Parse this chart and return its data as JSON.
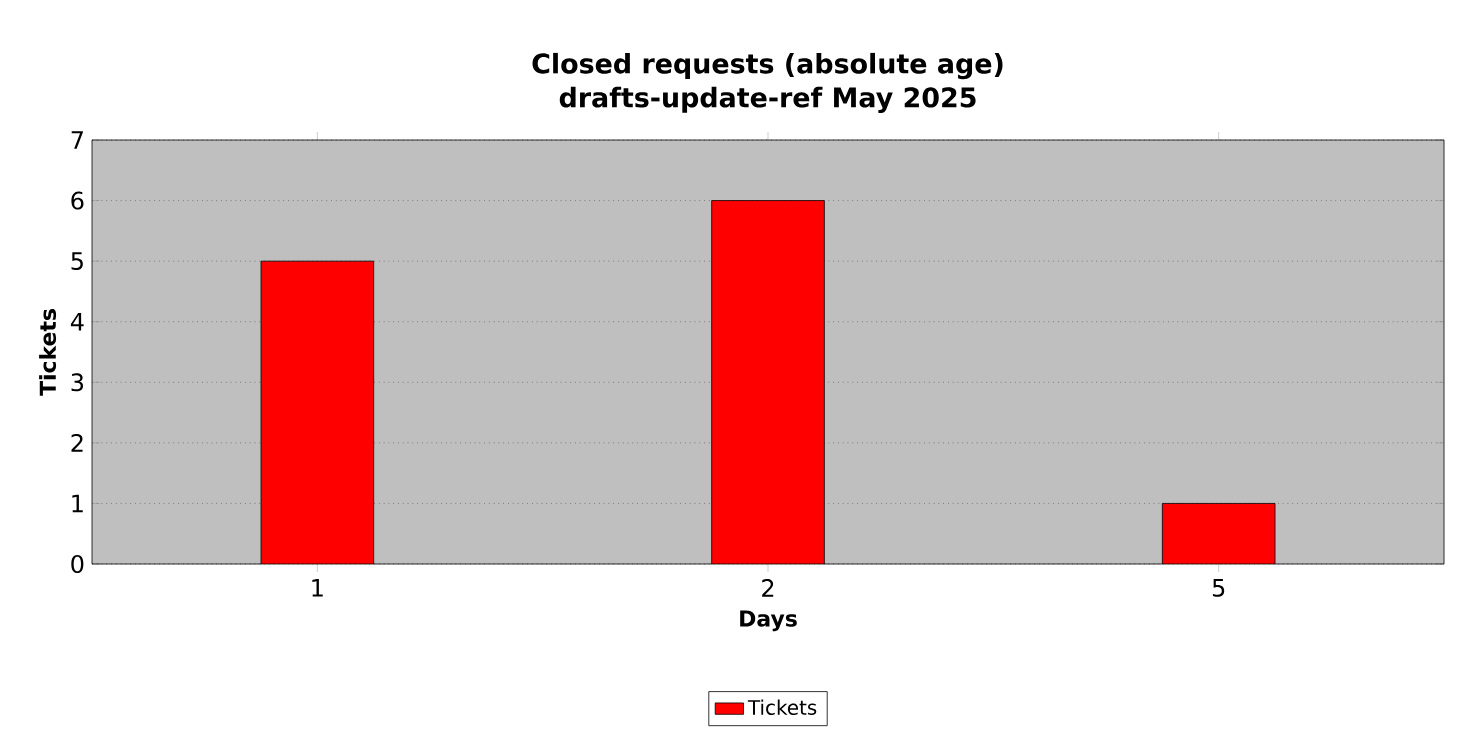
{
  "chart_data": {
    "type": "bar",
    "title": "Closed requests (absolute age)",
    "subtitle": "drafts-update-ref May 2025",
    "xlabel": "Days",
    "ylabel": "Tickets",
    "categories": [
      "1",
      "2",
      "5"
    ],
    "series": [
      {
        "name": "Tickets",
        "color": "#ff0000",
        "values": [
          5,
          6,
          1
        ]
      }
    ],
    "ylim": [
      0,
      7
    ],
    "yticks": [
      0,
      1,
      2,
      3,
      4,
      5,
      6,
      7
    ],
    "grid": "y",
    "legend": "bottom"
  }
}
